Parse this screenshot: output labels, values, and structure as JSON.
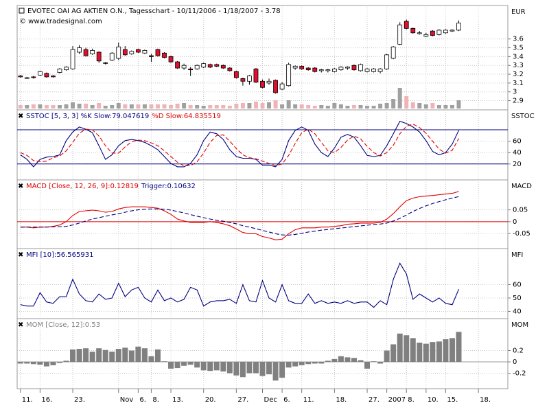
{
  "chart_data": [
    {
      "type": "candlestick",
      "title": "EVOTEC OAI AG AKTIEN O.N., Tagesschart - 10/11/2006 - 1/18/2007 - 3.78",
      "subtitle": "© www.tradesignal.com",
      "axis_label": "EUR",
      "up_color": "#ffffff",
      "down_color": "#e0102e",
      "volume_up_color": "#a0a0a0",
      "volume_down_color": "#f0b4b8",
      "open": [
        3.18,
        3.16,
        3.17,
        3.19,
        3.21,
        3.18,
        3.22,
        3.25,
        3.26,
        3.45,
        3.48,
        3.43,
        3.45,
        3.33,
        3.36,
        3.38,
        3.48,
        3.43,
        3.48,
        3.44,
        3.41,
        3.48,
        3.44,
        3.4,
        3.34,
        3.27,
        3.26,
        3.26,
        3.28,
        3.31,
        3.31,
        3.3,
        3.27,
        3.23,
        3.15,
        3.12,
        3.26,
        3.12,
        3.1,
        3.13,
        3.03,
        3.07,
        3.27,
        3.29,
        3.27,
        3.27,
        3.24,
        3.24,
        3.23,
        3.25,
        3.27,
        3.3,
        3.24,
        3.23,
        3.23,
        3.23,
        3.26,
        3.38,
        3.54,
        3.8,
        3.72,
        3.66,
        3.63,
        3.69,
        3.65,
        3.67,
        3.69,
        3.7
      ],
      "high": [
        3.19,
        3.17,
        3.18,
        3.24,
        3.22,
        3.19,
        3.27,
        3.29,
        3.52,
        3.53,
        3.5,
        3.49,
        3.46,
        3.34,
        3.45,
        3.56,
        3.52,
        3.47,
        3.49,
        3.48,
        3.43,
        3.49,
        3.45,
        3.41,
        3.35,
        3.32,
        3.28,
        3.31,
        3.33,
        3.32,
        3.32,
        3.31,
        3.28,
        3.24,
        3.16,
        3.19,
        3.27,
        3.14,
        3.15,
        3.14,
        3.11,
        3.33,
        3.3,
        3.3,
        3.28,
        3.28,
        3.26,
        3.26,
        3.27,
        3.29,
        3.29,
        3.31,
        3.32,
        3.27,
        3.27,
        3.27,
        3.43,
        3.52,
        3.79,
        3.82,
        3.73,
        3.69,
        3.67,
        3.7,
        3.71,
        3.71,
        3.71,
        3.81
      ],
      "low": [
        3.16,
        3.15,
        3.15,
        3.18,
        3.16,
        3.16,
        3.21,
        3.24,
        3.25,
        3.43,
        3.4,
        3.42,
        3.33,
        3.31,
        3.35,
        3.36,
        3.41,
        3.42,
        3.44,
        3.43,
        3.34,
        3.4,
        3.38,
        3.33,
        3.26,
        3.25,
        3.18,
        3.25,
        3.27,
        3.27,
        3.28,
        3.26,
        3.23,
        3.15,
        3.07,
        3.08,
        3.1,
        3.04,
        3.08,
        2.98,
        3.02,
        3.06,
        3.25,
        3.25,
        3.24,
        3.22,
        3.22,
        3.22,
        3.22,
        3.24,
        3.25,
        3.24,
        3.23,
        3.22,
        3.22,
        3.21,
        3.25,
        3.37,
        3.53,
        3.71,
        3.66,
        3.65,
        3.62,
        3.63,
        3.64,
        3.66,
        3.68,
        3.69
      ],
      "close": [
        3.17,
        3.16,
        3.16,
        3.23,
        3.17,
        3.17,
        3.26,
        3.28,
        3.48,
        3.5,
        3.41,
        3.47,
        3.35,
        3.33,
        3.44,
        3.51,
        3.42,
        3.46,
        3.45,
        3.47,
        3.4,
        3.41,
        3.39,
        3.34,
        3.27,
        3.3,
        3.25,
        3.3,
        3.32,
        3.28,
        3.29,
        3.27,
        3.24,
        3.16,
        3.12,
        3.18,
        3.11,
        3.05,
        3.12,
        2.99,
        3.09,
        3.31,
        3.29,
        3.26,
        3.25,
        3.23,
        3.25,
        3.25,
        3.26,
        3.28,
        3.28,
        3.25,
        3.31,
        3.26,
        3.26,
        3.26,
        3.42,
        3.51,
        3.76,
        3.72,
        3.67,
        3.67,
        3.65,
        3.64,
        3.7,
        3.7,
        3.7,
        3.78
      ],
      "volume": [
        5,
        5,
        6,
        6,
        5,
        5,
        5,
        6,
        9,
        7,
        7,
        5,
        8,
        4,
        5,
        8,
        6,
        6,
        6,
        6,
        6,
        6,
        6,
        5,
        7,
        8,
        5,
        5,
        4,
        5,
        5,
        5,
        4,
        7,
        8,
        8,
        10,
        8,
        9,
        12,
        6,
        12,
        6,
        6,
        5,
        4,
        5,
        4,
        8,
        6,
        4,
        5,
        5,
        4,
        4,
        7,
        8,
        14,
        30,
        18,
        9,
        8,
        6,
        8,
        5,
        5,
        5,
        12
      ],
      "ylim": [
        2.795,
        3.98
      ],
      "yticks": [
        2.9,
        3,
        3.1,
        3.2,
        3.3,
        3.4,
        3.5,
        3.6
      ],
      "grid": true
    },
    {
      "type": "line",
      "axis_label": "SSTOC",
      "series": [
        {
          "name": "SSTOC [5, 3, 3] %K Slow:79.047619",
          "color": "#000080",
          "dash": false,
          "values": [
            36,
            28,
            15,
            28,
            32,
            33,
            36,
            61,
            76,
            85,
            81,
            75,
            52,
            28,
            36,
            52,
            61,
            63,
            61,
            58,
            52,
            45,
            33,
            21,
            15,
            15,
            21,
            36,
            61,
            76,
            73,
            63,
            45,
            33,
            30,
            30,
            28,
            18,
            18,
            15,
            28,
            61,
            79,
            85,
            79,
            55,
            40,
            33,
            48,
            67,
            72,
            67,
            52,
            35,
            33,
            35,
            52,
            73,
            95,
            91,
            85,
            76,
            61,
            42,
            36,
            40,
            55,
            79.047619
          ]
        },
        {
          "name": "%D Slow:64.835519",
          "color": "#e00000",
          "dash": true,
          "values": [
            40,
            35,
            26,
            24,
            25,
            31,
            34,
            43,
            58,
            74,
            81,
            80,
            69,
            52,
            39,
            39,
            50,
            59,
            62,
            61,
            57,
            52,
            43,
            33,
            23,
            17,
            17,
            24,
            39,
            58,
            70,
            71,
            60,
            47,
            36,
            31,
            29,
            25,
            21,
            17,
            20,
            35,
            56,
            75,
            81,
            73,
            58,
            43,
            40,
            49,
            62,
            69,
            64,
            51,
            40,
            34,
            40,
            53,
            73,
            86,
            90,
            84,
            74,
            60,
            46,
            39,
            44,
            64.835519
          ]
        }
      ],
      "levels": [
        20,
        80
      ],
      "level_color": "#000080",
      "ylim": [
        -8,
        115
      ],
      "yticks": [
        20,
        40,
        60
      ],
      "grid": true
    },
    {
      "type": "line",
      "axis_label": "MACD",
      "series": [
        {
          "name": "MACD [Close, 12, 26, 9]:0.12819",
          "color": "#e00000",
          "dash": false,
          "values": [
            -0.023,
            -0.023,
            -0.026,
            -0.023,
            -0.023,
            -0.02,
            -0.014,
            0,
            0.026,
            0.043,
            0.046,
            0.049,
            0.046,
            0.04,
            0.043,
            0.054,
            0.06,
            0.063,
            0.063,
            0.063,
            0.06,
            0.057,
            0.046,
            0.031,
            0.011,
            0.003,
            -0.003,
            -0.003,
            -0.003,
            0,
            -0.003,
            -0.009,
            -0.017,
            -0.031,
            -0.046,
            -0.051,
            -0.051,
            -0.063,
            -0.069,
            -0.077,
            -0.074,
            -0.051,
            -0.034,
            -0.026,
            -0.026,
            -0.026,
            -0.023,
            -0.023,
            -0.02,
            -0.017,
            -0.011,
            -0.009,
            -0.006,
            -0.006,
            -0.006,
            -0.003,
            0.011,
            0.034,
            0.063,
            0.089,
            0.1,
            0.106,
            0.109,
            0.111,
            0.114,
            0.117,
            0.12,
            0.12819
          ]
        },
        {
          "name": "Trigger:0.10632",
          "color": "#000080",
          "dash": true,
          "values": [
            -0.023,
            -0.023,
            -0.023,
            -0.023,
            -0.023,
            -0.022,
            -0.021,
            -0.02,
            -0.014,
            -0.006,
            0.003,
            0.011,
            0.017,
            0.023,
            0.029,
            0.034,
            0.04,
            0.046,
            0.05,
            0.053,
            0.054,
            0.054,
            0.053,
            0.049,
            0.043,
            0.037,
            0.03,
            0.023,
            0.017,
            0.011,
            0.006,
            0.002,
            -0.003,
            -0.009,
            -0.017,
            -0.023,
            -0.03,
            -0.037,
            -0.044,
            -0.051,
            -0.056,
            -0.057,
            -0.054,
            -0.049,
            -0.044,
            -0.04,
            -0.036,
            -0.033,
            -0.03,
            -0.027,
            -0.024,
            -0.021,
            -0.018,
            -0.015,
            -0.012,
            -0.01,
            -0.006,
            0.003,
            0.014,
            0.028,
            0.043,
            0.056,
            0.067,
            0.077,
            0.085,
            0.093,
            0.1,
            0.10632
          ]
        }
      ],
      "levels": [
        0
      ],
      "level_color": "#e00000",
      "ylim": [
        -0.114,
        0.177
      ],
      "yticks": [
        -0.05,
        0,
        0.05
      ],
      "grid": true
    },
    {
      "type": "line",
      "axis_label": "MFI",
      "series": [
        {
          "name": "MFI [10]:56.565931",
          "color": "#000080",
          "dash": false,
          "values": [
            45,
            44,
            44,
            54,
            47,
            46,
            51,
            51,
            64,
            53,
            48,
            47,
            53,
            49,
            50,
            61,
            51,
            56,
            58,
            50,
            47,
            56,
            48,
            50,
            47,
            49,
            58,
            56,
            44,
            47,
            48,
            48,
            49,
            46,
            60,
            48,
            47,
            63,
            50,
            47,
            60,
            48,
            46,
            46,
            53,
            46,
            48,
            46,
            47,
            46,
            48,
            46,
            47,
            47,
            43,
            48,
            45,
            64,
            76,
            68,
            49,
            53,
            50,
            47,
            50,
            46,
            45,
            56.565931
          ]
        }
      ],
      "ylim": [
        34.6,
        86.9
      ],
      "yticks": [
        40,
        50,
        60
      ],
      "grid": true
    },
    {
      "type": "bar",
      "axis_label": "MOM",
      "series": [
        {
          "name": "MOM [Close, 12]:0.53",
          "color": "#808080",
          "values": [
            -0.03,
            -0.03,
            -0.04,
            -0.05,
            -0.08,
            -0.06,
            -0.02,
            0.02,
            0.22,
            0.23,
            0.24,
            0.18,
            0.24,
            0.21,
            0.18,
            0.23,
            0.25,
            0.2,
            0.27,
            0.24,
            0.1,
            0.22,
            0.01,
            -0.12,
            -0.11,
            -0.07,
            -0.05,
            -0.1,
            -0.15,
            -0.16,
            -0.15,
            -0.17,
            -0.2,
            -0.24,
            -0.27,
            -0.2,
            -0.2,
            -0.25,
            -0.22,
            -0.33,
            -0.28,
            -0.1,
            -0.08,
            -0.06,
            -0.04,
            -0.03,
            -0.03,
            0.02,
            0.05,
            0.1,
            0.08,
            0.07,
            0.03,
            -0.12,
            0.01,
            -0.03,
            0.2,
            0.31,
            0.5,
            0.47,
            0.42,
            0.34,
            0.32,
            0.35,
            0.36,
            0.4,
            0.42,
            0.53
          ]
        }
      ],
      "ylim": [
        -0.473,
        0.764
      ],
      "yticks": [
        -0.2,
        0,
        0.2
      ],
      "grid": true,
      "xlim": [
        -0.5,
        74.5
      ],
      "xticks": [
        {
          "value": 0,
          "label": "11."
        },
        {
          "value": 3,
          "label": "16."
        },
        {
          "value": 8,
          "label": "23."
        },
        {
          "value": 15,
          "label": "Nov"
        },
        {
          "value": 18,
          "label": "6."
        },
        {
          "value": 20,
          "label": "8."
        },
        {
          "value": 23,
          "label": "13."
        },
        {
          "value": 28,
          "label": "20."
        },
        {
          "value": 33,
          "label": "27."
        },
        {
          "value": 37,
          "label": "Dec"
        },
        {
          "value": 40,
          "label": "6."
        },
        {
          "value": 43,
          "label": "11."
        },
        {
          "value": 48,
          "label": "18."
        },
        {
          "value": 53,
          "label": "27."
        },
        {
          "value": 56,
          "label": "2007"
        },
        {
          "value": 59,
          "label": "8."
        },
        {
          "value": 62,
          "label": "10."
        },
        {
          "value": 65,
          "label": "15."
        },
        {
          "value": 70,
          "label": "18."
        }
      ]
    }
  ]
}
